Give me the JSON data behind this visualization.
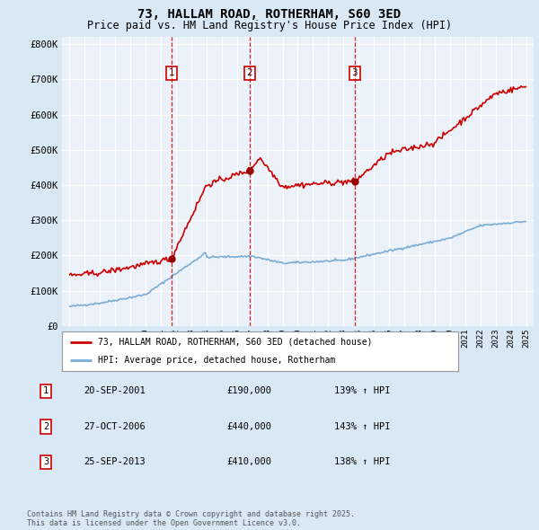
{
  "title": "73, HALLAM ROAD, ROTHERHAM, S60 3ED",
  "subtitle": "Price paid vs. HM Land Registry's House Price Index (HPI)",
  "bg_color": "#d8e8f5",
  "plot_bg_color": "#eaf1f8",
  "grid_color": "#ffffff",
  "red_line_color": "#cc0000",
  "blue_line_color": "#7aadd4",
  "sale_dates": [
    2001.72,
    2006.82,
    2013.73
  ],
  "sale_prices": [
    190000,
    440000,
    410000
  ],
  "sale_labels": [
    "1",
    "2",
    "3"
  ],
  "vline_color": "#cc0000",
  "legend_entries": [
    "73, HALLAM ROAD, ROTHERHAM, S60 3ED (detached house)",
    "HPI: Average price, detached house, Rotherham"
  ],
  "table_data": [
    [
      "1",
      "20-SEP-2001",
      "£190,000",
      "139% ↑ HPI"
    ],
    [
      "2",
      "27-OCT-2006",
      "£440,000",
      "143% ↑ HPI"
    ],
    [
      "3",
      "25-SEP-2013",
      "£410,000",
      "138% ↑ HPI"
    ]
  ],
  "footer": "Contains HM Land Registry data © Crown copyright and database right 2025.\nThis data is licensed under the Open Government Licence v3.0.",
  "ylim": [
    0,
    820000
  ],
  "yticks": [
    0,
    100000,
    200000,
    300000,
    400000,
    500000,
    600000,
    700000,
    800000
  ],
  "xlim_start": 1994.5,
  "xlim_end": 2025.5
}
